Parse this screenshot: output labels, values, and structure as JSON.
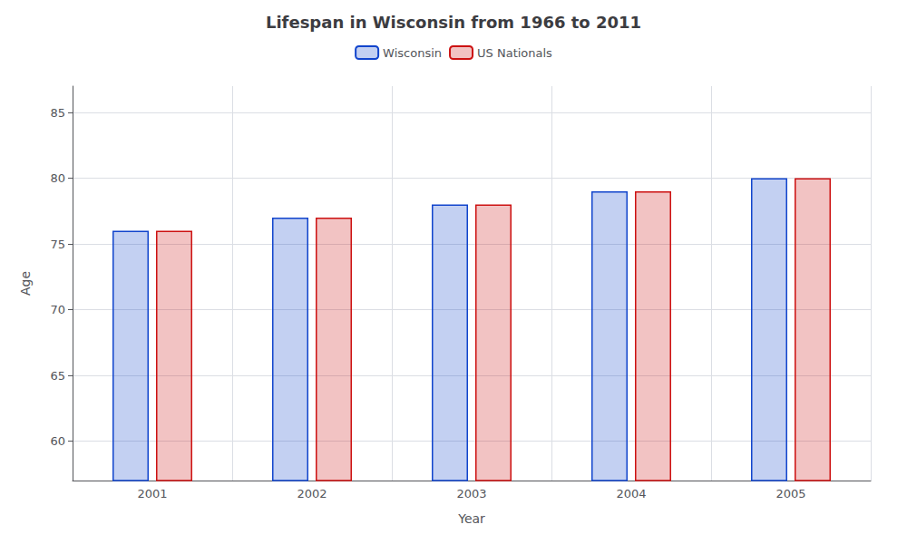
{
  "chart_data": {
    "type": "bar",
    "title": "Lifespan in Wisconsin from 1966 to 2011",
    "xlabel": "Year",
    "ylabel": "Age",
    "categories": [
      "2001",
      "2002",
      "2003",
      "2004",
      "2005"
    ],
    "series": [
      {
        "name": "Wisconsin",
        "color": "#1144cc",
        "values": [
          76,
          77,
          78,
          79,
          80
        ]
      },
      {
        "name": "US Nationals",
        "color": "#cc1111",
        "values": [
          76,
          77,
          78,
          79,
          80
        ]
      }
    ],
    "ylim": [
      57,
      87
    ],
    "yticks": [
      60,
      65,
      70,
      75,
      80,
      85
    ],
    "grid": true,
    "legend": "top"
  }
}
